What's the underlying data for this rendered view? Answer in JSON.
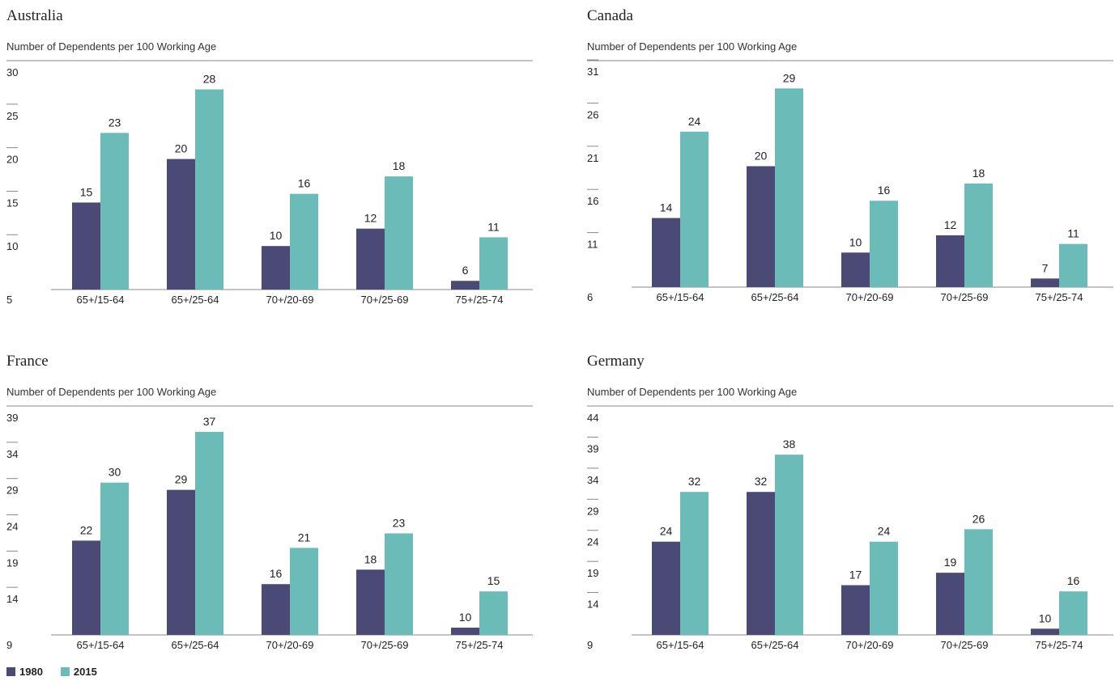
{
  "colors": {
    "s1980": "#4b4a76",
    "s2015": "#6bbcb8",
    "axis": "#888888",
    "text": "#222222"
  },
  "legend": [
    {
      "label": "1980",
      "color": "#4b4a76"
    },
    {
      "label": "2015",
      "color": "#6bbcb8"
    }
  ],
  "chart_data": [
    {
      "type": "bar",
      "title": "Australia",
      "subtitle": "Number of Dependents per 100 Working Age",
      "categories": [
        "65+/15-64",
        "65+/25-64",
        "70+/20-69",
        "70+/25-69",
        "75+/25-74"
      ],
      "series": [
        {
          "name": "1980",
          "values": [
            15,
            20,
            10,
            12,
            6
          ]
        },
        {
          "name": "2015",
          "values": [
            23,
            28,
            16,
            18,
            11
          ]
        }
      ],
      "ylim": [
        5,
        30
      ],
      "yticks": [
        5,
        10,
        15,
        20,
        25,
        30
      ],
      "legend": "bottom-left"
    },
    {
      "type": "bar",
      "title": "Canada",
      "subtitle": "Number of Dependents per 100 Working Age",
      "categories": [
        "65+/15-64",
        "65+/25-64",
        "70+/20-69",
        "70+/25-69",
        "75+/25-74"
      ],
      "series": [
        {
          "name": "1980",
          "values": [
            14,
            20,
            10,
            12,
            7
          ]
        },
        {
          "name": "2015",
          "values": [
            24,
            29,
            16,
            18,
            11
          ]
        }
      ],
      "ylim": [
        6,
        31
      ],
      "yticks": [
        6,
        11,
        16,
        21,
        26,
        31
      ],
      "legend": "bottom-left"
    },
    {
      "type": "bar",
      "title": "France",
      "subtitle": "Number of Dependents per 100 Working Age",
      "categories": [
        "65+/15-64",
        "65+/25-64",
        "70+/20-69",
        "70+/25-69",
        "75+/25-74"
      ],
      "series": [
        {
          "name": "1980",
          "values": [
            22,
            29,
            16,
            18,
            10
          ]
        },
        {
          "name": "2015",
          "values": [
            30,
            37,
            21,
            23,
            15
          ]
        }
      ],
      "ylim": [
        9,
        39
      ],
      "yticks": [
        9,
        14,
        19,
        24,
        29,
        34,
        39
      ],
      "legend": "bottom-left"
    },
    {
      "type": "bar",
      "title": "Germany",
      "subtitle": "Number of Dependents per 100 Working Age",
      "categories": [
        "65+/15-64",
        "65+/25-64",
        "70+/20-69",
        "70+/25-69",
        "75+/25-74"
      ],
      "series": [
        {
          "name": "1980",
          "values": [
            24,
            32,
            17,
            19,
            10
          ]
        },
        {
          "name": "2015",
          "values": [
            32,
            38,
            24,
            26,
            16
          ]
        }
      ],
      "ylim": [
        9,
        44
      ],
      "yticks": [
        9,
        14,
        19,
        24,
        29,
        34,
        39,
        44
      ],
      "legend": "bottom-left"
    }
  ]
}
